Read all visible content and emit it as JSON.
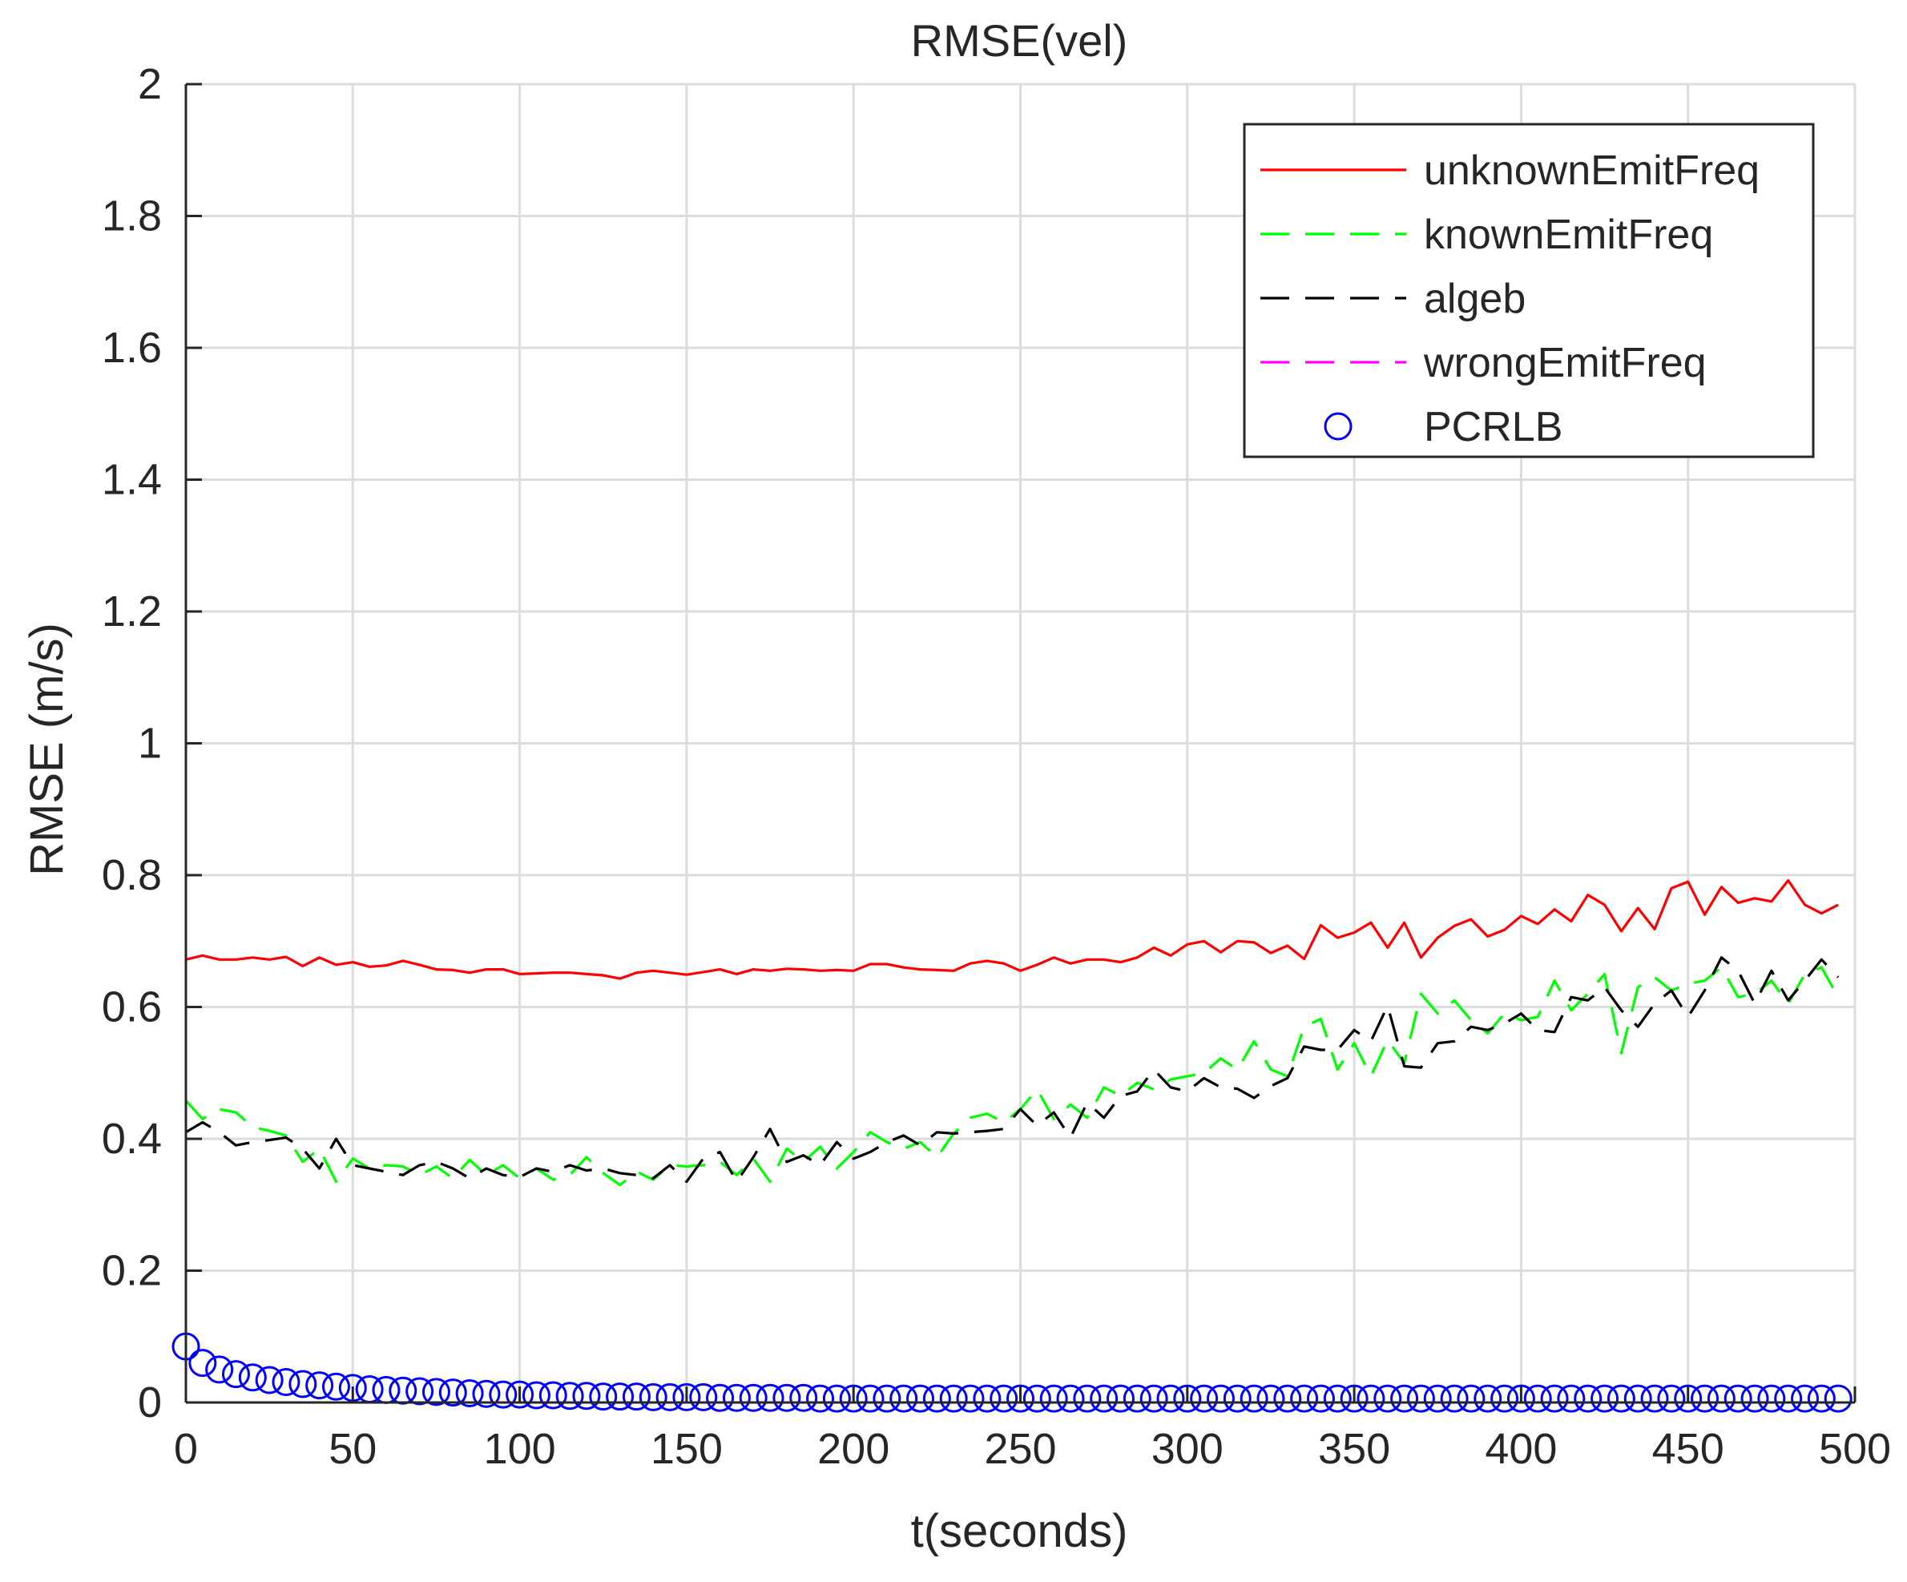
{
  "chart_data": {
    "type": "line",
    "title": "RMSE(vel)",
    "xlabel": "t(seconds)",
    "ylabel": "RMSE (m/s)",
    "xlim": [
      0,
      500
    ],
    "ylim": [
      0,
      2
    ],
    "xticks": [
      0,
      50,
      100,
      150,
      200,
      250,
      300,
      350,
      400,
      450,
      500
    ],
    "yticks": [
      0,
      0.2,
      0.4,
      0.6,
      0.8,
      1,
      1.2,
      1.4,
      1.6,
      1.8,
      2
    ],
    "xtick_labels": [
      "0",
      "50",
      "100",
      "150",
      "200",
      "250",
      "300",
      "350",
      "400",
      "450",
      "500"
    ],
    "ytick_labels": [
      "0",
      "0.2",
      "0.4",
      "0.6",
      "0.8",
      "1",
      "1.2",
      "1.4",
      "1.6",
      "1.8",
      "2"
    ],
    "grid": true,
    "legend_position": "top-right",
    "series": [
      {
        "name": "unknownEmitFreq",
        "color": "#ff0000",
        "style": "solid",
        "marker": "none",
        "x": [
          0,
          5,
          10,
          15,
          20,
          25,
          30,
          35,
          40,
          45,
          50,
          55,
          60,
          65,
          70,
          75,
          80,
          85,
          90,
          95,
          100,
          105,
          110,
          115,
          120,
          125,
          130,
          135,
          140,
          145,
          150,
          155,
          160,
          165,
          170,
          175,
          180,
          185,
          190,
          195,
          200,
          205,
          210,
          215,
          220,
          225,
          230,
          235,
          240,
          245,
          250,
          255,
          260,
          265,
          270,
          275,
          280,
          285,
          290,
          295,
          300,
          305,
          310,
          315,
          320,
          325,
          330,
          335,
          340,
          345,
          350,
          355,
          360,
          365,
          370,
          375,
          380,
          385,
          390,
          395,
          400,
          405,
          410,
          415,
          420,
          425,
          430,
          435,
          440,
          445,
          450,
          455,
          460,
          465,
          470,
          475,
          480,
          485,
          490,
          495
        ],
        "y": [
          0.672,
          0.678,
          0.672,
          0.672,
          0.675,
          0.672,
          0.676,
          0.662,
          0.675,
          0.664,
          0.668,
          0.661,
          0.663,
          0.67,
          0.664,
          0.657,
          0.656,
          0.652,
          0.657,
          0.657,
          0.65,
          0.651,
          0.652,
          0.652,
          0.65,
          0.648,
          0.643,
          0.652,
          0.655,
          0.652,
          0.649,
          0.653,
          0.657,
          0.65,
          0.657,
          0.655,
          0.658,
          0.657,
          0.655,
          0.656,
          0.655,
          0.665,
          0.665,
          0.66,
          0.657,
          0.656,
          0.655,
          0.666,
          0.67,
          0.666,
          0.655,
          0.664,
          0.675,
          0.666,
          0.672,
          0.672,
          0.668,
          0.675,
          0.69,
          0.678,
          0.695,
          0.7,
          0.683,
          0.7,
          0.698,
          0.682,
          0.693,
          0.673,
          0.724,
          0.705,
          0.713,
          0.728,
          0.69,
          0.728,
          0.675,
          0.705,
          0.723,
          0.733,
          0.707,
          0.717,
          0.738,
          0.726,
          0.748,
          0.73,
          0.77,
          0.755,
          0.715,
          0.75,
          0.718,
          0.78,
          0.79,
          0.74,
          0.782,
          0.758,
          0.765,
          0.76,
          0.792,
          0.755,
          0.742,
          0.755
        ]
      },
      {
        "name": "knownEmitFreq",
        "color": "#00ff00",
        "style": "dashed",
        "marker": "none",
        "x": [
          0,
          5,
          10,
          15,
          20,
          25,
          30,
          35,
          40,
          45,
          50,
          55,
          60,
          65,
          70,
          75,
          80,
          85,
          90,
          95,
          100,
          105,
          110,
          115,
          120,
          125,
          130,
          135,
          140,
          145,
          150,
          155,
          160,
          165,
          170,
          175,
          180,
          185,
          190,
          195,
          200,
          205,
          210,
          215,
          220,
          225,
          230,
          235,
          240,
          245,
          250,
          255,
          260,
          265,
          270,
          275,
          280,
          285,
          290,
          295,
          300,
          305,
          310,
          315,
          320,
          325,
          330,
          335,
          340,
          345,
          350,
          355,
          360,
          365,
          370,
          375,
          380,
          385,
          390,
          395,
          400,
          405,
          410,
          415,
          420,
          425,
          430,
          435,
          440,
          445,
          450,
          455,
          460,
          465,
          470,
          475,
          480,
          485,
          490,
          495
        ],
        "y": [
          0.458,
          0.43,
          0.445,
          0.44,
          0.418,
          0.412,
          0.405,
          0.365,
          0.385,
          0.335,
          0.37,
          0.355,
          0.36,
          0.358,
          0.345,
          0.358,
          0.34,
          0.368,
          0.345,
          0.36,
          0.34,
          0.355,
          0.338,
          0.345,
          0.372,
          0.348,
          0.33,
          0.35,
          0.338,
          0.36,
          0.358,
          0.36,
          0.365,
          0.345,
          0.37,
          0.335,
          0.385,
          0.365,
          0.388,
          0.355,
          0.38,
          0.41,
          0.395,
          0.385,
          0.395,
          0.372,
          0.408,
          0.432,
          0.438,
          0.425,
          0.445,
          0.475,
          0.43,
          0.452,
          0.432,
          0.478,
          0.465,
          0.485,
          0.475,
          0.49,
          0.495,
          0.5,
          0.522,
          0.505,
          0.548,
          0.505,
          0.495,
          0.57,
          0.582,
          0.505,
          0.545,
          0.495,
          0.55,
          0.515,
          0.62,
          0.59,
          0.61,
          0.58,
          0.56,
          0.59,
          0.58,
          0.585,
          0.64,
          0.595,
          0.62,
          0.65,
          0.53,
          0.63,
          0.645,
          0.625,
          0.635,
          0.64,
          0.66,
          0.615,
          0.62,
          0.64,
          0.605,
          0.65,
          0.66,
          0.615
        ]
      },
      {
        "name": "algeb",
        "color": "#000000",
        "style": "dashed",
        "marker": "none",
        "x": [
          0,
          5,
          10,
          15,
          20,
          25,
          30,
          35,
          40,
          45,
          50,
          55,
          60,
          65,
          70,
          75,
          80,
          85,
          90,
          95,
          100,
          105,
          110,
          115,
          120,
          125,
          130,
          135,
          140,
          145,
          150,
          155,
          160,
          165,
          170,
          175,
          180,
          185,
          190,
          195,
          200,
          205,
          210,
          215,
          220,
          225,
          230,
          235,
          240,
          245,
          250,
          255,
          260,
          265,
          270,
          275,
          280,
          285,
          290,
          295,
          300,
          305,
          310,
          315,
          320,
          325,
          330,
          335,
          340,
          345,
          350,
          355,
          360,
          365,
          370,
          375,
          380,
          385,
          390,
          395,
          400,
          405,
          410,
          415,
          420,
          425,
          430,
          435,
          440,
          445,
          450,
          455,
          460,
          465,
          470,
          475,
          480,
          485,
          490,
          495
        ],
        "y": [
          0.41,
          0.425,
          0.41,
          0.39,
          0.395,
          0.398,
          0.402,
          0.385,
          0.355,
          0.4,
          0.36,
          0.355,
          0.35,
          0.345,
          0.36,
          0.365,
          0.355,
          0.34,
          0.355,
          0.345,
          0.342,
          0.355,
          0.35,
          0.36,
          0.352,
          0.355,
          0.348,
          0.345,
          0.34,
          0.36,
          0.335,
          0.37,
          0.38,
          0.335,
          0.372,
          0.415,
          0.365,
          0.375,
          0.36,
          0.395,
          0.37,
          0.38,
          0.395,
          0.405,
          0.39,
          0.41,
          0.408,
          0.41,
          0.412,
          0.415,
          0.445,
          0.42,
          0.44,
          0.402,
          0.455,
          0.432,
          0.465,
          0.472,
          0.505,
          0.478,
          0.472,
          0.492,
          0.478,
          0.476,
          0.462,
          0.48,
          0.492,
          0.54,
          0.535,
          0.535,
          0.565,
          0.548,
          0.602,
          0.51,
          0.508,
          0.545,
          0.548,
          0.57,
          0.565,
          0.575,
          0.59,
          0.565,
          0.562,
          0.615,
          0.61,
          0.63,
          0.595,
          0.57,
          0.605,
          0.625,
          0.585,
          0.625,
          0.675,
          0.655,
          0.605,
          0.655,
          0.61,
          0.64,
          0.672,
          0.645
        ]
      },
      {
        "name": "wrongEmitFreq",
        "color": "#ff00ff",
        "style": "dashed",
        "marker": "none",
        "x": [],
        "y": []
      },
      {
        "name": "PCRLB",
        "color": "#0000ff",
        "style": "none",
        "marker": "circle",
        "x": [
          0,
          5,
          10,
          15,
          20,
          25,
          30,
          35,
          40,
          45,
          50,
          55,
          60,
          65,
          70,
          75,
          80,
          85,
          90,
          95,
          100,
          105,
          110,
          115,
          120,
          125,
          130,
          135,
          140,
          145,
          150,
          155,
          160,
          165,
          170,
          175,
          180,
          185,
          190,
          195,
          200,
          205,
          210,
          215,
          220,
          225,
          230,
          235,
          240,
          245,
          250,
          255,
          260,
          265,
          270,
          275,
          280,
          285,
          290,
          295,
          300,
          305,
          310,
          315,
          320,
          325,
          330,
          335,
          340,
          345,
          350,
          355,
          360,
          365,
          370,
          375,
          380,
          385,
          390,
          395,
          400,
          405,
          410,
          415,
          420,
          425,
          430,
          435,
          440,
          445,
          450,
          455,
          460,
          465,
          470,
          475,
          480,
          485,
          490,
          495
        ],
        "y": [
          0.085,
          0.06,
          0.05,
          0.043,
          0.038,
          0.034,
          0.031,
          0.028,
          0.026,
          0.024,
          0.022,
          0.02,
          0.019,
          0.018,
          0.017,
          0.016,
          0.015,
          0.014,
          0.013,
          0.012,
          0.012,
          0.011,
          0.011,
          0.01,
          0.01,
          0.009,
          0.009,
          0.009,
          0.008,
          0.008,
          0.008,
          0.008,
          0.007,
          0.007,
          0.007,
          0.007,
          0.007,
          0.007,
          0.006,
          0.006,
          0.006,
          0.006,
          0.006,
          0.006,
          0.006,
          0.006,
          0.006,
          0.006,
          0.006,
          0.006,
          0.006,
          0.006,
          0.006,
          0.006,
          0.006,
          0.006,
          0.006,
          0.006,
          0.006,
          0.006,
          0.006,
          0.006,
          0.006,
          0.006,
          0.006,
          0.006,
          0.006,
          0.006,
          0.006,
          0.006,
          0.006,
          0.006,
          0.006,
          0.006,
          0.006,
          0.006,
          0.006,
          0.006,
          0.006,
          0.006,
          0.006,
          0.006,
          0.006,
          0.006,
          0.006,
          0.006,
          0.006,
          0.006,
          0.006,
          0.006,
          0.006,
          0.006,
          0.006,
          0.006,
          0.006,
          0.006,
          0.006,
          0.006,
          0.006,
          0.006
        ]
      }
    ]
  }
}
